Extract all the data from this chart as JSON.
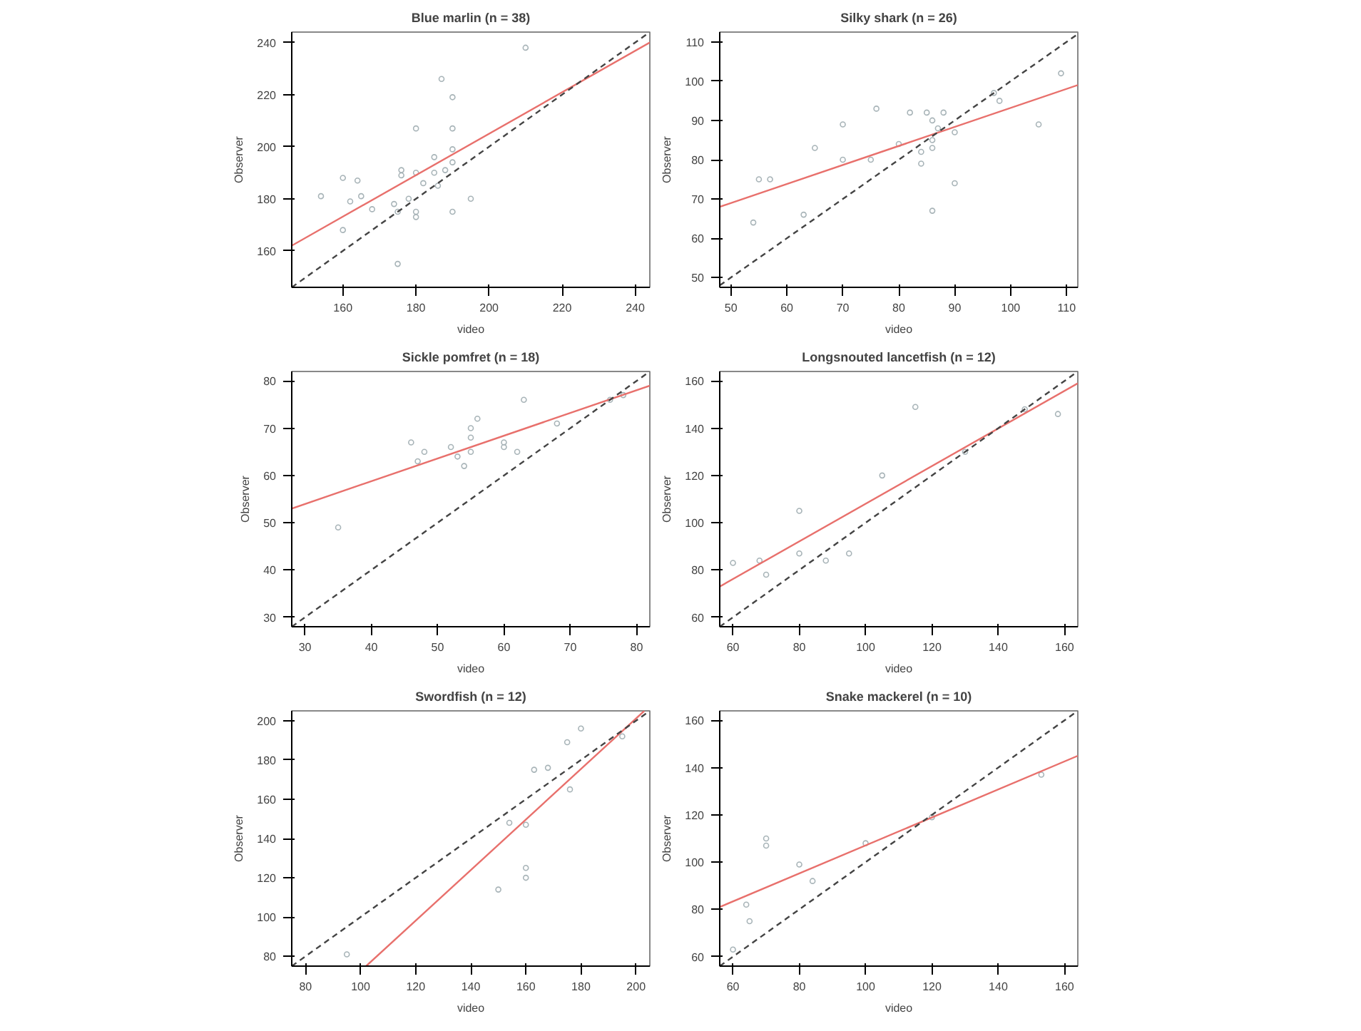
{
  "chart_data": [
    {
      "type": "scatter",
      "title": "Blue marlin (n = 38)",
      "xlabel": "video",
      "ylabel": "Observer",
      "xlim": [
        146,
        244
      ],
      "ylim": [
        146,
        244
      ],
      "xticks": [
        160,
        180,
        200,
        220,
        240
      ],
      "yticks": [
        160,
        180,
        200,
        220,
        240
      ],
      "grid": false,
      "series": [
        {
          "marker": "circle",
          "color": "#a8b4b8",
          "x": [
            154,
            160,
            160,
            162,
            164,
            165,
            168,
            174,
            175,
            175,
            176,
            176,
            178,
            180,
            180,
            180,
            180,
            182,
            185,
            185,
            186,
            187,
            188,
            190,
            190,
            190,
            190,
            190,
            195,
            210
          ],
          "values": [
            181,
            188,
            168,
            179,
            187,
            181,
            176,
            178,
            155,
            175,
            191,
            189,
            180,
            207,
            175,
            173,
            190,
            186,
            196,
            190,
            185,
            226,
            191,
            219,
            207,
            199,
            194,
            175,
            180,
            238
          ]
        },
        {
          "type": "line",
          "marker": "none",
          "color": "#e8706c",
          "line_style": "solid",
          "x": [
            146,
            244
          ],
          "values": [
            162,
            240
          ]
        },
        {
          "type": "line",
          "marker": "none",
          "color": "#444444",
          "line_style": "dashed",
          "x": [
            146,
            244
          ],
          "values": [
            146,
            244
          ]
        }
      ]
    },
    {
      "type": "scatter",
      "title": "Silky shark (n = 26)",
      "xlabel": "video",
      "ylabel": "Observer",
      "xlim": [
        48,
        112
      ],
      "ylim": [
        47.5,
        112.5
      ],
      "xticks": [
        50,
        60,
        70,
        80,
        90,
        100,
        110
      ],
      "yticks": [
        50,
        60,
        70,
        80,
        90,
        100,
        110
      ],
      "grid": false,
      "series": [
        {
          "marker": "circle",
          "color": "#a8b4b8",
          "x": [
            54,
            55,
            57,
            63,
            65,
            70,
            70,
            75,
            76,
            80,
            82,
            84,
            84,
            85,
            86,
            86,
            86,
            86,
            87,
            88,
            90,
            90,
            97,
            98,
            105,
            109
          ],
          "values": [
            64,
            75,
            75,
            66,
            83,
            89,
            80,
            80,
            93,
            84,
            92,
            79,
            82,
            92,
            90,
            85,
            83,
            67,
            88,
            92,
            74,
            87,
            97,
            95,
            89,
            102
          ]
        },
        {
          "type": "line",
          "marker": "none",
          "color": "#e8706c",
          "line_style": "solid",
          "x": [
            48,
            112
          ],
          "values": [
            68,
            99
          ]
        },
        {
          "type": "line",
          "marker": "none",
          "color": "#444444",
          "line_style": "dashed",
          "x": [
            48,
            112
          ],
          "values": [
            48,
            112
          ]
        }
      ]
    },
    {
      "type": "scatter",
      "title": "Sickle pomfret (n = 18)",
      "xlabel": "video",
      "ylabel": "Observer",
      "xlim": [
        28,
        82
      ],
      "ylim": [
        28,
        82
      ],
      "xticks": [
        30,
        40,
        50,
        60,
        70,
        80
      ],
      "yticks": [
        30,
        40,
        50,
        60,
        70,
        80
      ],
      "grid": false,
      "series": [
        {
          "marker": "circle",
          "color": "#a8b4b8",
          "x": [
            35,
            46,
            47,
            48,
            52,
            53,
            54,
            55,
            55,
            55,
            56,
            60,
            60,
            62,
            63,
            68,
            76,
            78
          ],
          "values": [
            49,
            67,
            63,
            65,
            66,
            64,
            62,
            70,
            68,
            65,
            72,
            67,
            66,
            65,
            76,
            71,
            76,
            77
          ]
        },
        {
          "type": "line",
          "marker": "none",
          "color": "#e8706c",
          "line_style": "solid",
          "x": [
            28,
            82
          ],
          "values": [
            53,
            79
          ]
        },
        {
          "type": "line",
          "marker": "none",
          "color": "#444444",
          "line_style": "dashed",
          "x": [
            28,
            82
          ],
          "values": [
            28,
            82
          ]
        }
      ]
    },
    {
      "type": "scatter",
      "title": "Longsnouted lancetfish (n = 12)",
      "xlabel": "video",
      "ylabel": "Observer",
      "xlim": [
        56,
        164
      ],
      "ylim": [
        56,
        164
      ],
      "xticks": [
        60,
        80,
        100,
        120,
        140,
        160
      ],
      "yticks": [
        60,
        80,
        100,
        120,
        140,
        160
      ],
      "grid": false,
      "series": [
        {
          "marker": "circle",
          "color": "#a8b4b8",
          "x": [
            60,
            68,
            70,
            80,
            80,
            88,
            95,
            105,
            115,
            130,
            148,
            158
          ],
          "values": [
            83,
            84,
            78,
            105,
            87,
            84,
            87,
            120,
            149,
            130,
            148,
            146
          ]
        },
        {
          "type": "line",
          "marker": "none",
          "color": "#e8706c",
          "line_style": "solid",
          "x": [
            56,
            164
          ],
          "values": [
            73,
            159
          ]
        },
        {
          "type": "line",
          "marker": "none",
          "color": "#444444",
          "line_style": "dashed",
          "x": [
            56,
            164
          ],
          "values": [
            56,
            164
          ]
        }
      ]
    },
    {
      "type": "scatter",
      "title": "Swordfish (n = 12)",
      "xlabel": "video",
      "ylabel": "Observer",
      "xlim": [
        75,
        205
      ],
      "ylim": [
        75,
        205
      ],
      "xticks": [
        80,
        100,
        120,
        140,
        160,
        180,
        200
      ],
      "yticks": [
        80,
        100,
        120,
        140,
        160,
        180,
        200
      ],
      "grid": false,
      "series": [
        {
          "marker": "circle",
          "color": "#a8b4b8",
          "x": [
            95,
            150,
            154,
            160,
            160,
            160,
            163,
            168,
            175,
            176,
            180,
            195
          ],
          "values": [
            81,
            114,
            148,
            147,
            125,
            120,
            175,
            176,
            189,
            165,
            196,
            192
          ]
        },
        {
          "type": "line",
          "marker": "none",
          "color": "#e8706c",
          "line_style": "solid",
          "x": [
            102,
            203
          ],
          "values": [
            75,
            205
          ]
        },
        {
          "type": "line",
          "marker": "none",
          "color": "#444444",
          "line_style": "dashed",
          "x": [
            75,
            205
          ],
          "values": [
            75,
            205
          ]
        }
      ]
    },
    {
      "type": "scatter",
      "title": "Snake mackerel (n = 10)",
      "xlabel": "video",
      "ylabel": "Observer",
      "xlim": [
        56,
        164
      ],
      "ylim": [
        56,
        164
      ],
      "xticks": [
        60,
        80,
        100,
        120,
        140,
        160
      ],
      "yticks": [
        60,
        80,
        100,
        120,
        140,
        160
      ],
      "grid": false,
      "series": [
        {
          "marker": "circle",
          "color": "#a8b4b8",
          "x": [
            60,
            64,
            65,
            70,
            70,
            80,
            84,
            100,
            120,
            153
          ],
          "values": [
            63,
            82,
            75,
            110,
            107,
            99,
            92,
            108,
            119,
            137
          ]
        },
        {
          "type": "line",
          "marker": "none",
          "color": "#e8706c",
          "line_style": "solid",
          "x": [
            56,
            164
          ],
          "values": [
            81,
            145
          ]
        },
        {
          "type": "line",
          "marker": "none",
          "color": "#444444",
          "line_style": "dashed",
          "x": [
            56,
            164
          ],
          "values": [
            56,
            164
          ]
        }
      ]
    }
  ]
}
